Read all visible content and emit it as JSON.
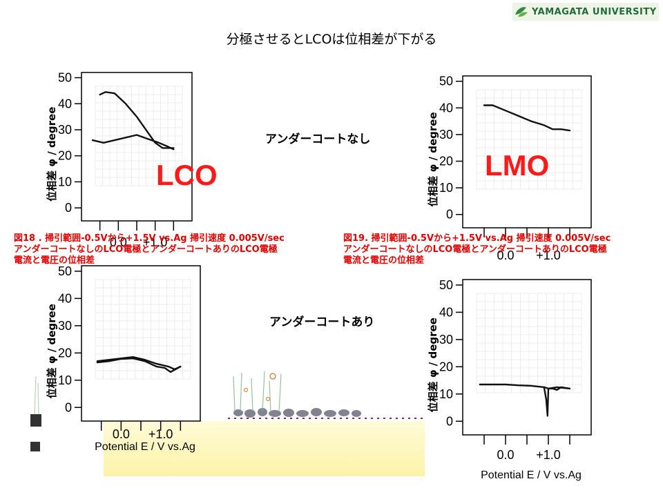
{
  "header": {
    "logo_text": "YAMAGATA UNIVERSITY",
    "title": "分極させるとLCOは位相差が下がる"
  },
  "labels": {
    "no_undercoat": "アンダーコートなし",
    "with_undercoat": "アンダーコートあり",
    "lco": "LCO",
    "lmo": "LMO"
  },
  "captions": {
    "fig18": [
      "図18 . 掃引範囲-0.5Vから+1.5V vs.Ag 掃引速度 0.005V/sec",
      "アンダーコートなしのLCO電極とアンダーコートありのLCO電極",
      "電流と電圧の位相差"
    ],
    "fig19": [
      "図19. 掃引範囲-0.5Vから+1.5V vs.Ag 掃引速度 0.005V/sec",
      "アンダーコートなしのLCO電極とアンダーコートありのLCO電極",
      "電流と電圧の位相差"
    ]
  },
  "chart_data": [
    {
      "type": "line",
      "ylabel": "位相差 φ / degree",
      "xlabel": "",
      "ylim": [
        -5,
        52
      ],
      "xlim": [
        -1.0,
        2.0
      ],
      "yticks": [
        "50",
        "40",
        "30",
        "20",
        "10",
        "0"
      ],
      "xticks": [
        "0.0",
        "+1.0"
      ],
      "series": [
        {
          "points": [
            [
              -0.5,
              43.5
            ],
            [
              -0.35,
              44.5
            ],
            [
              -0.1,
              44.0
            ],
            [
              0.2,
              40.0
            ],
            [
              0.5,
              35.0
            ],
            [
              0.8,
              29.0
            ],
            [
              1.0,
              25.0
            ],
            [
              1.2,
              23.0
            ],
            [
              1.5,
              23.0
            ]
          ]
        },
        {
          "points": [
            [
              -0.7,
              26.0
            ],
            [
              -0.4,
              25.0
            ],
            [
              -0.1,
              26.0
            ],
            [
              0.2,
              27.0
            ],
            [
              0.5,
              28.0
            ],
            [
              0.8,
              26.5
            ],
            [
              1.1,
              25.0
            ],
            [
              1.35,
              23.5
            ],
            [
              1.5,
              22.5
            ]
          ]
        }
      ]
    },
    {
      "type": "line",
      "ylabel": "位相差 φ / degree",
      "xlabel": "",
      "ylim": [
        -5,
        52
      ],
      "xlim": [
        -1.0,
        2.0
      ],
      "yticks": [
        "50",
        "40",
        "30",
        "20",
        "10",
        "0"
      ],
      "xticks": [
        "0.0",
        "+1.0"
      ],
      "series": [
        {
          "points": [
            [
              -0.5,
              41.0
            ],
            [
              -0.3,
              41.0
            ],
            [
              0.0,
              39.0
            ],
            [
              0.3,
              37.0
            ],
            [
              0.6,
              35.0
            ],
            [
              0.9,
              33.5
            ],
            [
              1.1,
              32.0
            ],
            [
              1.3,
              32.0
            ],
            [
              1.5,
              31.5
            ]
          ]
        }
      ]
    },
    {
      "type": "line",
      "ylabel": "位相差 φ / degree",
      "xlabel": "Potential E / V   vs.Ag",
      "ylim": [
        -5,
        52
      ],
      "xlim": [
        -1.0,
        2.0
      ],
      "yticks": [
        "50",
        "40",
        "30",
        "20",
        "10",
        "0"
      ],
      "xticks": [
        "0.0",
        "+1.0"
      ],
      "series": [
        {
          "points": [
            [
              -0.6,
              17.0
            ],
            [
              -0.3,
              17.5
            ],
            [
              0.0,
              18.0
            ],
            [
              0.3,
              18.5
            ],
            [
              0.6,
              17.5
            ],
            [
              0.9,
              16.0
            ],
            [
              1.2,
              15.0
            ],
            [
              1.35,
              14.0
            ],
            [
              1.5,
              15.0
            ]
          ]
        },
        {
          "points": [
            [
              -0.6,
              16.5
            ],
            [
              -0.3,
              17.0
            ],
            [
              0.0,
              17.8
            ],
            [
              0.3,
              18.0
            ],
            [
              0.6,
              17.0
            ],
            [
              0.9,
              15.0
            ],
            [
              1.1,
              14.5
            ],
            [
              1.25,
              13.0
            ],
            [
              1.5,
              15.0
            ]
          ]
        }
      ]
    },
    {
      "type": "line",
      "ylabel": "位相差 φ / degree",
      "xlabel": "Potential E / V   vs.Ag",
      "ylim": [
        -5,
        52
      ],
      "xlim": [
        -1.0,
        2.0
      ],
      "yticks": [
        "50",
        "40",
        "30",
        "20",
        "10",
        "0"
      ],
      "xticks": [
        "0.0",
        "+1.0"
      ],
      "series": [
        {
          "points": [
            [
              -0.6,
              13.5
            ],
            [
              -0.3,
              13.5
            ],
            [
              0.0,
              13.5
            ],
            [
              0.3,
              13.2
            ],
            [
              0.6,
              13.0
            ],
            [
              0.9,
              12.5
            ],
            [
              1.0,
              12.0
            ],
            [
              1.2,
              12.5
            ],
            [
              1.5,
              12.0
            ]
          ]
        },
        {
          "points": [
            [
              0.9,
              12.5
            ],
            [
              0.95,
              8.0
            ],
            [
              0.98,
              2.0
            ],
            [
              1.0,
              12.0
            ],
            [
              1.1,
              12.0
            ],
            [
              1.2,
              11.5
            ],
            [
              1.3,
              12.5
            ],
            [
              1.5,
              12.0
            ]
          ]
        }
      ]
    }
  ],
  "colors": {
    "caption": "#e00000",
    "big_label": "#ff1a1a",
    "logo": "#1f6b3a"
  }
}
